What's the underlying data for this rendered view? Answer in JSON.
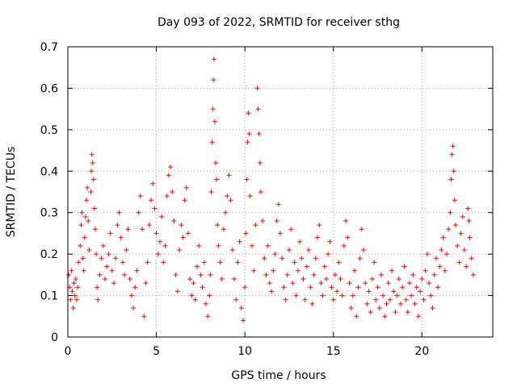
{
  "chart_data": {
    "type": "scatter",
    "title": "Day 093 of 2022, SRMTID for receiver sthg",
    "xlabel": "GPS time / hours",
    "ylabel": "SRMTID / TECUs",
    "xlim": [
      0,
      24
    ],
    "ylim": [
      0,
      0.7
    ],
    "xticks": [
      0,
      5,
      10,
      15,
      20
    ],
    "xtick_labels": [
      "0",
      "5",
      "10",
      "15",
      "20"
    ],
    "yticks": [
      0,
      0.1,
      0.2,
      0.3,
      0.4,
      0.5,
      0.6,
      0.7
    ],
    "ytick_labels": [
      "0",
      "0.1",
      "0.2",
      "0.3",
      "0.4",
      "0.5",
      "0.6",
      "0.7"
    ],
    "grid": true,
    "marker": "+",
    "marker_color": "#ff0000",
    "series": [
      {
        "name": "SRMTID",
        "color": "#ff0000",
        "points": [
          [
            0.05,
            0.15
          ],
          [
            0.1,
            0.12
          ],
          [
            0.15,
            0.09
          ],
          [
            0.2,
            0.16
          ],
          [
            0.25,
            0.11
          ],
          [
            0.3,
            0.07
          ],
          [
            0.35,
            0.13
          ],
          [
            0.4,
            0.1
          ],
          [
            0.45,
            0.14
          ],
          [
            0.5,
            0.09
          ],
          [
            0.55,
            0.12
          ],
          [
            0.6,
            0.18
          ],
          [
            0.7,
            0.22
          ],
          [
            0.75,
            0.27
          ],
          [
            0.8,
            0.3
          ],
          [
            0.85,
            0.19
          ],
          [
            0.9,
            0.16
          ],
          [
            0.95,
            0.24
          ],
          [
            1.0,
            0.29
          ],
          [
            1.05,
            0.33
          ],
          [
            1.1,
            0.36
          ],
          [
            1.15,
            0.28
          ],
          [
            1.2,
            0.21
          ],
          [
            1.3,
            0.35
          ],
          [
            1.33,
            0.4
          ],
          [
            1.36,
            0.44
          ],
          [
            1.4,
            0.42
          ],
          [
            1.45,
            0.38
          ],
          [
            1.5,
            0.31
          ],
          [
            1.55,
            0.26
          ],
          [
            1.6,
            0.2
          ],
          [
            1.65,
            0.12
          ],
          [
            1.7,
            0.09
          ],
          [
            1.8,
            0.15
          ],
          [
            1.9,
            0.19
          ],
          [
            2.0,
            0.22
          ],
          [
            2.1,
            0.14
          ],
          [
            2.2,
            0.17
          ],
          [
            2.3,
            0.2
          ],
          [
            2.4,
            0.25
          ],
          [
            2.5,
            0.16
          ],
          [
            2.6,
            0.13
          ],
          [
            2.7,
            0.19
          ],
          [
            2.8,
            0.27
          ],
          [
            2.9,
            0.3
          ],
          [
            3.0,
            0.24
          ],
          [
            3.1,
            0.18
          ],
          [
            3.2,
            0.15
          ],
          [
            3.3,
            0.21
          ],
          [
            3.4,
            0.26
          ],
          [
            3.5,
            0.14
          ],
          [
            3.6,
            0.1
          ],
          [
            3.7,
            0.07
          ],
          [
            3.8,
            0.12
          ],
          [
            3.9,
            0.16
          ],
          [
            4.0,
            0.3
          ],
          [
            4.1,
            0.34
          ],
          [
            4.2,
            0.26
          ],
          [
            4.3,
            0.05
          ],
          [
            4.4,
            0.13
          ],
          [
            4.5,
            0.18
          ],
          [
            4.6,
            0.27
          ],
          [
            4.7,
            0.33
          ],
          [
            4.8,
            0.37
          ],
          [
            4.9,
            0.31
          ],
          [
            5.0,
            0.25
          ],
          [
            5.1,
            0.2
          ],
          [
            5.2,
            0.23
          ],
          [
            5.3,
            0.29
          ],
          [
            5.4,
            0.18
          ],
          [
            5.5,
            0.22
          ],
          [
            5.6,
            0.34
          ],
          [
            5.7,
            0.39
          ],
          [
            5.8,
            0.41
          ],
          [
            5.9,
            0.35
          ],
          [
            6.0,
            0.28
          ],
          [
            6.1,
            0.15
          ],
          [
            6.2,
            0.11
          ],
          [
            6.3,
            0.21
          ],
          [
            6.4,
            0.27
          ],
          [
            6.5,
            0.24
          ],
          [
            6.6,
            0.33
          ],
          [
            6.7,
            0.36
          ],
          [
            6.8,
            0.25
          ],
          [
            6.9,
            0.14
          ],
          [
            7.0,
            0.1
          ],
          [
            7.1,
            0.13
          ],
          [
            7.2,
            0.09
          ],
          [
            7.3,
            0.17
          ],
          [
            7.4,
            0.22
          ],
          [
            7.5,
            0.15
          ],
          [
            7.6,
            0.12
          ],
          [
            7.7,
            0.18
          ],
          [
            7.8,
            0.08
          ],
          [
            7.9,
            0.05
          ],
          [
            8.0,
            0.1
          ],
          [
            8.05,
            0.15
          ],
          [
            8.1,
            0.35
          ],
          [
            8.15,
            0.47
          ],
          [
            8.2,
            0.55
          ],
          [
            8.22,
            0.62
          ],
          [
            8.25,
            0.67
          ],
          [
            8.3,
            0.52
          ],
          [
            8.35,
            0.42
          ],
          [
            8.4,
            0.38
          ],
          [
            8.45,
            0.27
          ],
          [
            8.5,
            0.22
          ],
          [
            8.6,
            0.18
          ],
          [
            8.7,
            0.14
          ],
          [
            8.8,
            0.26
          ],
          [
            8.9,
            0.3
          ],
          [
            9.0,
            0.34
          ],
          [
            9.1,
            0.39
          ],
          [
            9.2,
            0.33
          ],
          [
            9.3,
            0.21
          ],
          [
            9.4,
            0.14
          ],
          [
            9.5,
            0.09
          ],
          [
            9.6,
            0.18
          ],
          [
            9.7,
            0.23
          ],
          [
            9.8,
            0.07
          ],
          [
            9.9,
            0.04
          ],
          [
            10.0,
            0.12
          ],
          [
            10.05,
            0.25
          ],
          [
            10.1,
            0.38
          ],
          [
            10.15,
            0.47
          ],
          [
            10.2,
            0.54
          ],
          [
            10.25,
            0.49
          ],
          [
            10.3,
            0.34
          ],
          [
            10.4,
            0.22
          ],
          [
            10.5,
            0.16
          ],
          [
            10.6,
            0.27
          ],
          [
            10.7,
            0.6
          ],
          [
            10.75,
            0.55
          ],
          [
            10.8,
            0.49
          ],
          [
            10.85,
            0.42
          ],
          [
            10.9,
            0.35
          ],
          [
            11.0,
            0.28
          ],
          [
            11.1,
            0.19
          ],
          [
            11.2,
            0.15
          ],
          [
            11.3,
            0.22
          ],
          [
            11.4,
            0.13
          ],
          [
            11.5,
            0.11
          ],
          [
            11.6,
            0.16
          ],
          [
            11.7,
            0.2
          ],
          [
            11.8,
            0.28
          ],
          [
            11.9,
            0.32
          ],
          [
            12.0,
            0.25
          ],
          [
            12.1,
            0.19
          ],
          [
            12.2,
            0.12
          ],
          [
            12.3,
            0.09
          ],
          [
            12.4,
            0.15
          ],
          [
            12.5,
            0.21
          ],
          [
            12.6,
            0.26
          ],
          [
            12.7,
            0.13
          ],
          [
            12.8,
            0.18
          ],
          [
            12.9,
            0.1
          ],
          [
            13.0,
            0.16
          ],
          [
            13.1,
            0.23
          ],
          [
            13.2,
            0.19
          ],
          [
            13.3,
            0.14
          ],
          [
            13.4,
            0.09
          ],
          [
            13.5,
            0.17
          ],
          [
            13.6,
            0.21
          ],
          [
            13.7,
            0.12
          ],
          [
            13.8,
            0.08
          ],
          [
            13.9,
            0.15
          ],
          [
            14.0,
            0.19
          ],
          [
            14.1,
            0.24
          ],
          [
            14.2,
            0.27
          ],
          [
            14.3,
            0.13
          ],
          [
            14.4,
            0.1
          ],
          [
            14.5,
            0.17
          ],
          [
            14.6,
            0.14
          ],
          [
            14.7,
            0.2
          ],
          [
            14.8,
            0.23
          ],
          [
            14.9,
            0.12
          ],
          [
            15.0,
            0.09
          ],
          [
            15.1,
            0.15
          ],
          [
            15.2,
            0.11
          ],
          [
            15.3,
            0.18
          ],
          [
            15.4,
            0.14
          ],
          [
            15.5,
            0.1
          ],
          [
            15.6,
            0.22
          ],
          [
            15.7,
            0.28
          ],
          [
            15.8,
            0.24
          ],
          [
            15.9,
            0.13
          ],
          [
            16.0,
            0.07
          ],
          [
            16.1,
            0.1
          ],
          [
            16.2,
            0.16
          ],
          [
            16.3,
            0.05
          ],
          [
            16.4,
            0.12
          ],
          [
            16.5,
            0.19
          ],
          [
            16.6,
            0.26
          ],
          [
            16.7,
            0.21
          ],
          [
            16.8,
            0.13
          ],
          [
            16.9,
            0.08
          ],
          [
            17.0,
            0.11
          ],
          [
            17.1,
            0.06
          ],
          [
            17.2,
            0.14
          ],
          [
            17.3,
            0.18
          ],
          [
            17.4,
            0.09
          ],
          [
            17.5,
            0.12
          ],
          [
            17.6,
            0.07
          ],
          [
            17.7,
            0.15
          ],
          [
            17.8,
            0.1
          ],
          [
            17.9,
            0.05
          ],
          [
            18.0,
            0.08
          ],
          [
            18.1,
            0.13
          ],
          [
            18.2,
            0.09
          ],
          [
            18.3,
            0.16
          ],
          [
            18.4,
            0.11
          ],
          [
            18.5,
            0.06
          ],
          [
            18.6,
            0.1
          ],
          [
            18.7,
            0.14
          ],
          [
            18.8,
            0.08
          ],
          [
            18.9,
            0.12
          ],
          [
            19.0,
            0.17
          ],
          [
            19.1,
            0.09
          ],
          [
            19.2,
            0.06
          ],
          [
            19.3,
            0.13
          ],
          [
            19.4,
            0.1
          ],
          [
            19.5,
            0.15
          ],
          [
            19.6,
            0.08
          ],
          [
            19.7,
            0.12
          ],
          [
            19.8,
            0.05
          ],
          [
            19.9,
            0.11
          ],
          [
            20.0,
            0.14
          ],
          [
            20.1,
            0.09
          ],
          [
            20.2,
            0.16
          ],
          [
            20.3,
            0.2
          ],
          [
            20.4,
            0.13
          ],
          [
            20.5,
            0.1
          ],
          [
            20.6,
            0.07
          ],
          [
            20.7,
            0.15
          ],
          [
            20.8,
            0.19
          ],
          [
            20.9,
            0.12
          ],
          [
            21.0,
            0.17
          ],
          [
            21.1,
            0.21
          ],
          [
            21.2,
            0.24
          ],
          [
            21.3,
            0.16
          ],
          [
            21.4,
            0.2
          ],
          [
            21.5,
            0.26
          ],
          [
            21.6,
            0.3
          ],
          [
            21.65,
            0.38
          ],
          [
            21.7,
            0.44
          ],
          [
            21.75,
            0.46
          ],
          [
            21.8,
            0.4
          ],
          [
            21.85,
            0.33
          ],
          [
            21.9,
            0.27
          ],
          [
            22.0,
            0.22
          ],
          [
            22.1,
            0.18
          ],
          [
            22.2,
            0.25
          ],
          [
            22.3,
            0.29
          ],
          [
            22.4,
            0.21
          ],
          [
            22.5,
            0.17
          ],
          [
            22.6,
            0.31
          ],
          [
            22.65,
            0.28
          ],
          [
            22.7,
            0.24
          ],
          [
            22.8,
            0.19
          ],
          [
            22.9,
            0.15
          ]
        ]
      }
    ]
  }
}
